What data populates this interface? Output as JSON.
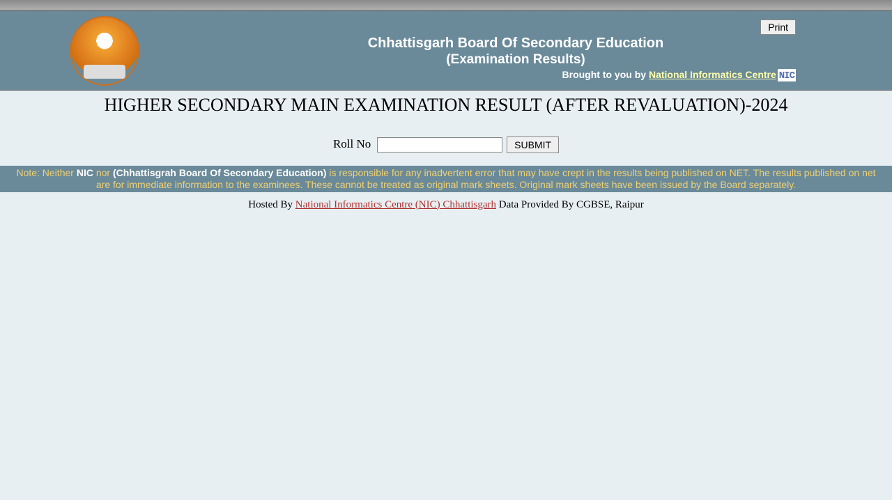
{
  "header": {
    "title": "Chhattisgarh Board Of Secondary Education",
    "subtitle": "(Examination Results)",
    "print_label": "Print",
    "brought_by_text": "Brought to you by ",
    "brought_by_link": "National Informatics Centre",
    "nic_badge": "NIC"
  },
  "page": {
    "title": "HIGHER SECONDARY MAIN EXAMINATION RESULT (AFTER REVALUATION)-2024"
  },
  "form": {
    "roll_label": "Roll No",
    "roll_value": "",
    "submit_label": "SUBMIT"
  },
  "note": {
    "prefix": "Note: Neither ",
    "nic": "NIC",
    "nor": " nor ",
    "board": "(Chhattisgrah Board Of Secondary Education)",
    "rest": " is responsible for any inadvertent error that may have crept in the results being published on NET. The results published on net are for immediate information to the examinees. These cannot be treated as original mark sheets. Original mark sheets have been issued by the Board separately."
  },
  "footer": {
    "hosted_prefix": "Hosted By ",
    "hosted_link": "National Informatics Centre (NIC) Chhattisgarh",
    "data_provided": "  Data Provided By CGBSE, Raipur"
  }
}
